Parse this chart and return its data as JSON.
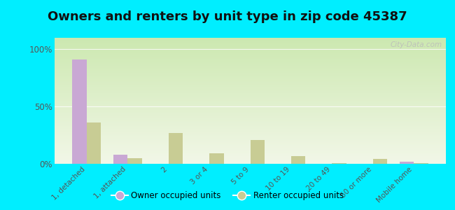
{
  "title": "Owners and renters by unit type in zip code 45387",
  "categories": [
    "1, detached",
    "1, attached",
    "2",
    "3 or 4",
    "5 to 9",
    "10 to 19",
    "20 to 49",
    "50 or more",
    "Mobile home"
  ],
  "owner_values": [
    91,
    8,
    0,
    0,
    0,
    0,
    0,
    0,
    2
  ],
  "renter_values": [
    36,
    5,
    27,
    9,
    21,
    7,
    0.5,
    4,
    0.5
  ],
  "owner_color": "#c9a8d4",
  "renter_color": "#c8cc94",
  "bg_top": "#cce8b0",
  "bg_bottom": "#f2f7e8",
  "bg_outer": "#00eeff",
  "yticks": [
    0,
    50,
    100
  ],
  "ylim": [
    0,
    110
  ],
  "bar_width": 0.35,
  "legend_owner": "Owner occupied units",
  "legend_renter": "Renter occupied units",
  "title_fontsize": 13,
  "watermark": "City-Data.com"
}
